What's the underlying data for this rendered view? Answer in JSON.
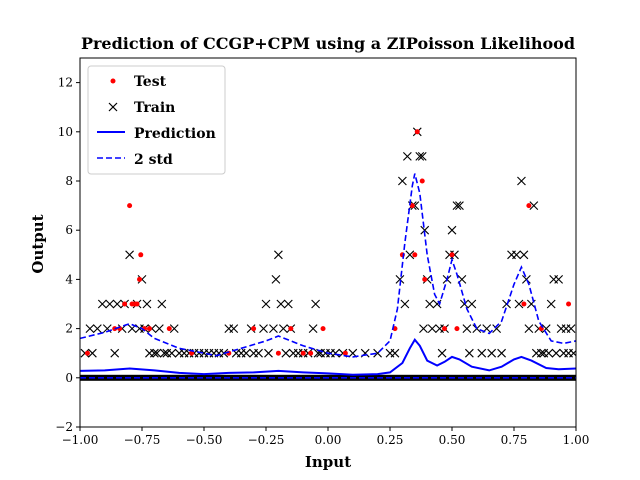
{
  "chart_data": {
    "type": "scatter",
    "title": "Prediction of CCGP+CPM using a ZIPoisson Likelihood",
    "xlabel": "Input",
    "ylabel": "Output",
    "xlim": [
      -1.0,
      1.0
    ],
    "ylim": [
      -2,
      13
    ],
    "xticks": [
      -1.0,
      -0.75,
      -0.5,
      -0.25,
      0.0,
      0.25,
      0.5,
      0.75,
      1.0
    ],
    "xtick_labels": [
      "−1.00",
      "−0.75",
      "−0.50",
      "−0.25",
      "0.00",
      "0.25",
      "0.50",
      "0.75",
      "1.00"
    ],
    "yticks": [
      -2,
      0,
      2,
      4,
      6,
      8,
      10,
      12
    ],
    "ytick_labels": [
      "−2",
      "0",
      "2",
      "4",
      "6",
      "8",
      "10",
      "12"
    ],
    "grid": false,
    "legend_placement": "upper-left",
    "legend": [
      {
        "label": "Test",
        "marker": "dot",
        "color": "#ff0000"
      },
      {
        "label": "Train",
        "marker": "x",
        "color": "#000000"
      },
      {
        "label": "Prediction",
        "line": "solid",
        "color": "#0000ff"
      },
      {
        "label": "2 std",
        "line": "dashed",
        "color": "#0000ff"
      }
    ],
    "series": [
      {
        "name": "Train",
        "color": "#000000",
        "points": [
          [
            -0.98,
            1
          ],
          [
            -0.96,
            2
          ],
          [
            -0.95,
            1
          ],
          [
            -0.93,
            2
          ],
          [
            -0.91,
            3
          ],
          [
            -0.89,
            2
          ],
          [
            -0.88,
            3
          ],
          [
            -0.86,
            1
          ],
          [
            -0.85,
            3
          ],
          [
            -0.83,
            2
          ],
          [
            -0.82,
            3
          ],
          [
            -0.8,
            5
          ],
          [
            -0.79,
            2
          ],
          [
            -0.77,
            3
          ],
          [
            -0.76,
            2
          ],
          [
            -0.75,
            4
          ],
          [
            -0.74,
            2
          ],
          [
            -0.73,
            3
          ],
          [
            -0.72,
            1
          ],
          [
            -0.71,
            2
          ],
          [
            -0.7,
            1
          ],
          [
            -0.69,
            1
          ],
          [
            -0.68,
            2
          ],
          [
            -0.67,
            3
          ],
          [
            -0.66,
            1
          ],
          [
            -0.65,
            1
          ],
          [
            -0.63,
            1
          ],
          [
            -0.62,
            2
          ],
          [
            -0.6,
            1
          ],
          [
            -0.58,
            1
          ],
          [
            -0.56,
            1
          ],
          [
            -0.54,
            1
          ],
          [
            -0.52,
            1
          ],
          [
            -0.5,
            1
          ],
          [
            -0.48,
            1
          ],
          [
            -0.46,
            1
          ],
          [
            -0.44,
            1
          ],
          [
            -0.42,
            1
          ],
          [
            -0.4,
            2
          ],
          [
            -0.38,
            2
          ],
          [
            -0.37,
            1
          ],
          [
            -0.35,
            1
          ],
          [
            -0.33,
            1
          ],
          [
            -0.31,
            2
          ],
          [
            -0.3,
            1
          ],
          [
            -0.28,
            1
          ],
          [
            -0.26,
            2
          ],
          [
            -0.25,
            3
          ],
          [
            -0.24,
            1
          ],
          [
            -0.22,
            2
          ],
          [
            -0.21,
            4
          ],
          [
            -0.2,
            5
          ],
          [
            -0.19,
            3
          ],
          [
            -0.18,
            2
          ],
          [
            -0.17,
            1
          ],
          [
            -0.16,
            3
          ],
          [
            -0.15,
            2
          ],
          [
            -0.14,
            1
          ],
          [
            -0.12,
            1
          ],
          [
            -0.1,
            1
          ],
          [
            -0.08,
            1
          ],
          [
            -0.06,
            2
          ],
          [
            -0.05,
            3
          ],
          [
            -0.04,
            1
          ],
          [
            -0.03,
            1
          ],
          [
            -0.01,
            1
          ],
          [
            0.01,
            1
          ],
          [
            0.03,
            1
          ],
          [
            0.06,
            1
          ],
          [
            0.1,
            1
          ],
          [
            0.15,
            1
          ],
          [
            0.2,
            1
          ],
          [
            0.25,
            1
          ],
          [
            0.27,
            1
          ],
          [
            0.29,
            4
          ],
          [
            0.3,
            8
          ],
          [
            0.31,
            3
          ],
          [
            0.32,
            9
          ],
          [
            0.33,
            5
          ],
          [
            0.34,
            7
          ],
          [
            0.35,
            7
          ],
          [
            0.36,
            10
          ],
          [
            0.37,
            9
          ],
          [
            0.38,
            9
          ],
          [
            0.385,
            2
          ],
          [
            0.39,
            6
          ],
          [
            0.4,
            4
          ],
          [
            0.41,
            3
          ],
          [
            0.42,
            2
          ],
          [
            0.44,
            3
          ],
          [
            0.45,
            2
          ],
          [
            0.46,
            1
          ],
          [
            0.47,
            2
          ],
          [
            0.48,
            4
          ],
          [
            0.49,
            5
          ],
          [
            0.5,
            6
          ],
          [
            0.51,
            5
          ],
          [
            0.52,
            7
          ],
          [
            0.53,
            7
          ],
          [
            0.54,
            4
          ],
          [
            0.55,
            3
          ],
          [
            0.56,
            2
          ],
          [
            0.57,
            1
          ],
          [
            0.58,
            3
          ],
          [
            0.6,
            2
          ],
          [
            0.62,
            1
          ],
          [
            0.64,
            2
          ],
          [
            0.66,
            1
          ],
          [
            0.68,
            2
          ],
          [
            0.7,
            1
          ],
          [
            0.72,
            3
          ],
          [
            0.74,
            5
          ],
          [
            0.76,
            5
          ],
          [
            0.77,
            3
          ],
          [
            0.78,
            8
          ],
          [
            0.79,
            5
          ],
          [
            0.8,
            4
          ],
          [
            0.81,
            2
          ],
          [
            0.82,
            3
          ],
          [
            0.83,
            7
          ],
          [
            0.84,
            1
          ],
          [
            0.85,
            2
          ],
          [
            0.86,
            1
          ],
          [
            0.87,
            1
          ],
          [
            0.88,
            2
          ],
          [
            0.89,
            1
          ],
          [
            0.9,
            3
          ],
          [
            0.91,
            4
          ],
          [
            0.92,
            1
          ],
          [
            0.93,
            4
          ],
          [
            0.94,
            2
          ],
          [
            0.95,
            1
          ],
          [
            0.96,
            2
          ],
          [
            0.97,
            1
          ],
          [
            0.98,
            2
          ],
          [
            0.99,
            1
          ]
        ]
      },
      {
        "name": "Test",
        "color": "#ff0000",
        "points": [
          [
            -0.97,
            1
          ],
          [
            -0.86,
            2
          ],
          [
            -0.84,
            2
          ],
          [
            -0.82,
            3
          ],
          [
            -0.8,
            7
          ],
          [
            -0.79,
            3
          ],
          [
            -0.78,
            3
          ],
          [
            -0.77,
            3
          ],
          [
            -0.76,
            4
          ],
          [
            -0.755,
            5
          ],
          [
            -0.74,
            2
          ],
          [
            -0.72,
            2
          ],
          [
            -0.64,
            2
          ],
          [
            -0.55,
            1
          ],
          [
            -0.4,
            1
          ],
          [
            -0.3,
            2
          ],
          [
            -0.2,
            1
          ],
          [
            -0.15,
            2
          ],
          [
            -0.1,
            1
          ],
          [
            -0.07,
            1
          ],
          [
            -0.02,
            2
          ],
          [
            0.07,
            1
          ],
          [
            0.27,
            2
          ],
          [
            0.3,
            5
          ],
          [
            0.34,
            7
          ],
          [
            0.35,
            5
          ],
          [
            0.36,
            10
          ],
          [
            0.38,
            8
          ],
          [
            0.39,
            4
          ],
          [
            0.47,
            2
          ],
          [
            0.5,
            5
          ],
          [
            0.52,
            2
          ],
          [
            0.79,
            3
          ],
          [
            0.81,
            7
          ],
          [
            0.86,
            2
          ],
          [
            0.97,
            3
          ]
        ]
      },
      {
        "name": "Prediction",
        "color": "#0000ff",
        "points": [
          [
            -1.0,
            0.28
          ],
          [
            -0.9,
            0.3
          ],
          [
            -0.8,
            0.38
          ],
          [
            -0.7,
            0.3
          ],
          [
            -0.6,
            0.2
          ],
          [
            -0.5,
            0.15
          ],
          [
            -0.4,
            0.2
          ],
          [
            -0.3,
            0.22
          ],
          [
            -0.2,
            0.28
          ],
          [
            -0.1,
            0.22
          ],
          [
            0.0,
            0.18
          ],
          [
            0.1,
            0.12
          ],
          [
            0.2,
            0.15
          ],
          [
            0.25,
            0.22
          ],
          [
            0.3,
            0.6
          ],
          [
            0.33,
            1.2
          ],
          [
            0.35,
            1.55
          ],
          [
            0.37,
            1.3
          ],
          [
            0.4,
            0.7
          ],
          [
            0.44,
            0.5
          ],
          [
            0.47,
            0.65
          ],
          [
            0.5,
            0.85
          ],
          [
            0.53,
            0.75
          ],
          [
            0.58,
            0.45
          ],
          [
            0.65,
            0.3
          ],
          [
            0.7,
            0.45
          ],
          [
            0.75,
            0.75
          ],
          [
            0.78,
            0.85
          ],
          [
            0.82,
            0.7
          ],
          [
            0.88,
            0.4
          ],
          [
            0.93,
            0.35
          ],
          [
            1.0,
            0.38
          ]
        ]
      },
      {
        "name": "2 std upper",
        "color": "#0000ff",
        "dashed": true,
        "points": [
          [
            -1.0,
            1.6
          ],
          [
            -0.9,
            1.85
          ],
          [
            -0.8,
            2.2
          ],
          [
            -0.75,
            2.0
          ],
          [
            -0.7,
            1.6
          ],
          [
            -0.6,
            1.2
          ],
          [
            -0.5,
            1.0
          ],
          [
            -0.45,
            0.9
          ],
          [
            -0.35,
            1.2
          ],
          [
            -0.25,
            1.5
          ],
          [
            -0.2,
            1.7
          ],
          [
            -0.1,
            1.3
          ],
          [
            0.0,
            1.0
          ],
          [
            0.1,
            0.85
          ],
          [
            0.2,
            1.0
          ],
          [
            0.25,
            1.5
          ],
          [
            0.28,
            2.8
          ],
          [
            0.31,
            5.5
          ],
          [
            0.34,
            7.8
          ],
          [
            0.35,
            8.3
          ],
          [
            0.37,
            7.5
          ],
          [
            0.4,
            5.0
          ],
          [
            0.43,
            3.4
          ],
          [
            0.45,
            3.0
          ],
          [
            0.48,
            4.0
          ],
          [
            0.5,
            4.8
          ],
          [
            0.52,
            4.2
          ],
          [
            0.56,
            2.8
          ],
          [
            0.6,
            2.0
          ],
          [
            0.65,
            1.8
          ],
          [
            0.7,
            2.3
          ],
          [
            0.75,
            3.8
          ],
          [
            0.78,
            4.5
          ],
          [
            0.81,
            3.8
          ],
          [
            0.85,
            2.3
          ],
          [
            0.9,
            1.5
          ],
          [
            0.95,
            1.4
          ],
          [
            1.0,
            1.5
          ]
        ]
      },
      {
        "name": "2 std lower",
        "color": "#0000ff",
        "dashed": true,
        "points": [
          [
            -1.0,
            0.0
          ],
          [
            1.0,
            0.0
          ]
        ]
      }
    ]
  }
}
